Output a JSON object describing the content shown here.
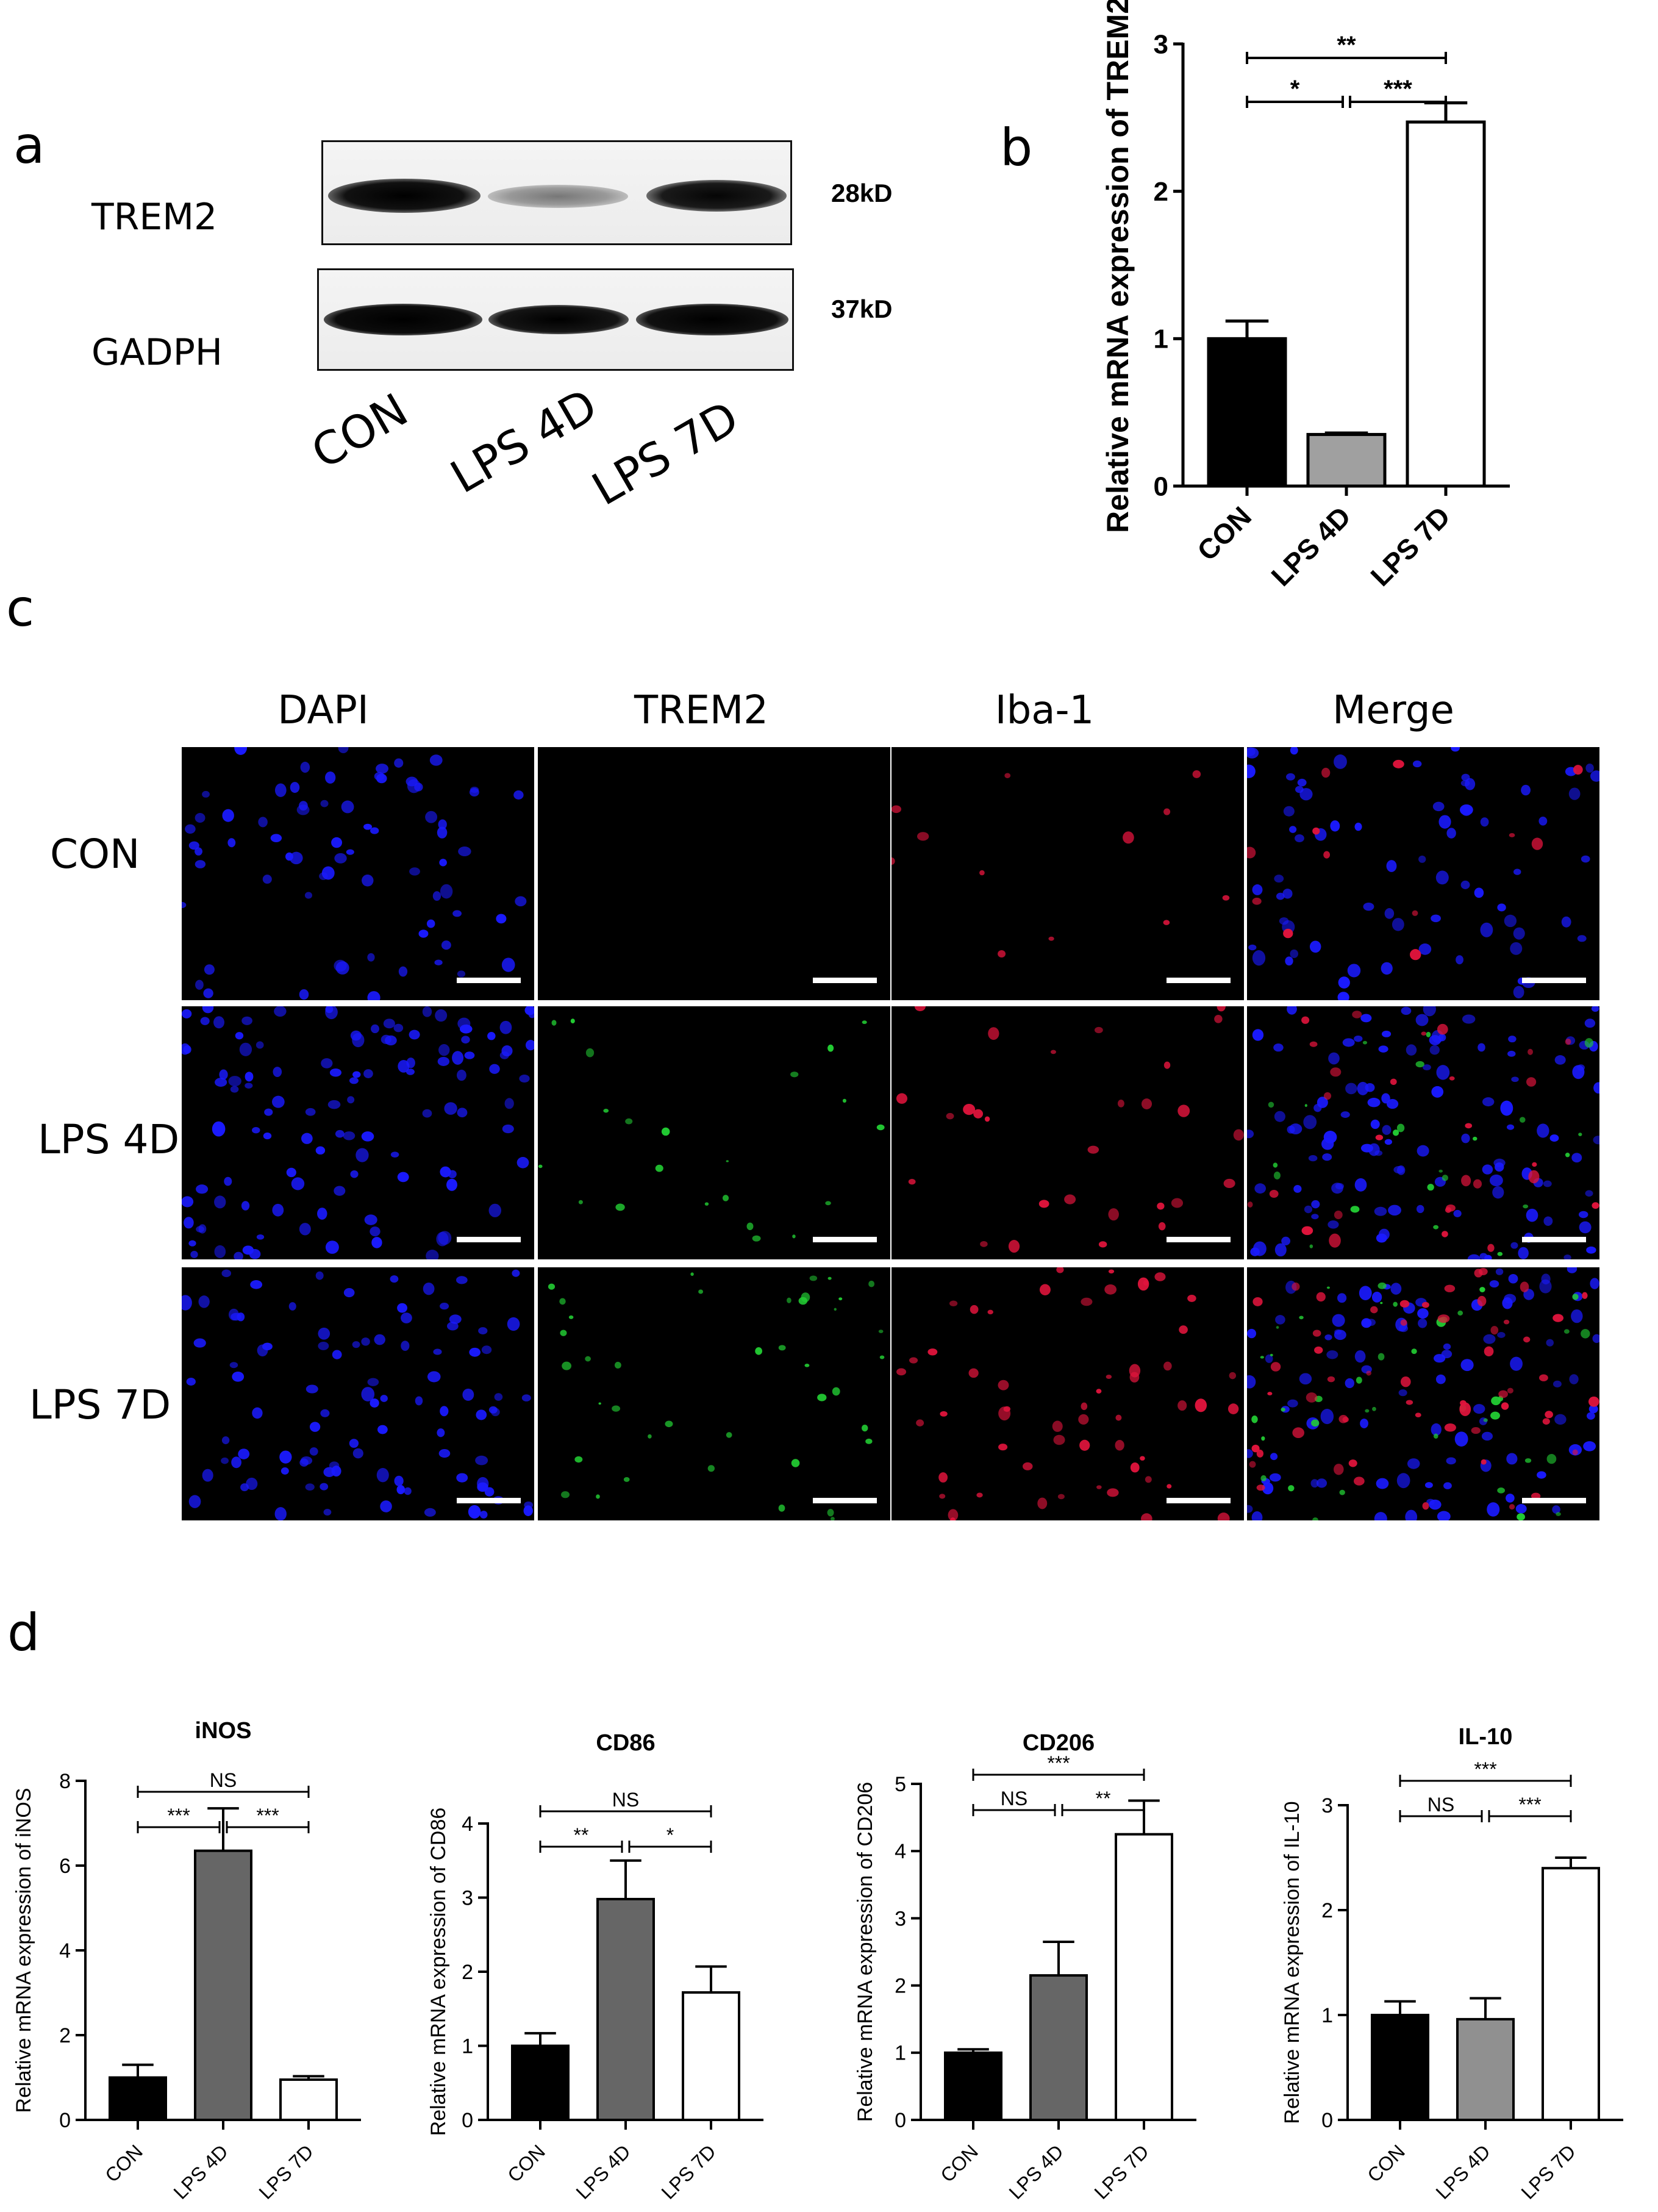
{
  "panel_labels": {
    "a": "a",
    "b": "b",
    "c": "c",
    "d": "d"
  },
  "western_blot": {
    "rows": [
      {
        "protein": "TREM2",
        "size": "28kD"
      },
      {
        "protein": "GADPH",
        "size": "37kD"
      }
    ],
    "lanes": [
      "CON",
      "LPS 4D",
      "LPS 7D"
    ],
    "band_intensity": {
      "TREM2": [
        1.0,
        0.3,
        0.85
      ],
      "GADPH": [
        1.0,
        0.95,
        0.95
      ]
    }
  },
  "microscopy": {
    "channels": [
      "DAPI",
      "TREM2",
      "Iba-1",
      "Merge"
    ],
    "rows": [
      "CON",
      "LPS 4D",
      "LPS 7D"
    ],
    "colors": {
      "DAPI": "#1a1aff",
      "TREM2": "#22cc33",
      "Iba-1": "#e0143c"
    }
  },
  "chart_data": [
    {
      "id": "b",
      "type": "bar",
      "title": "",
      "ylabel": "Relative mRNA expression of TREM2",
      "categories": [
        "CON",
        "LPS  4D",
        "LPS  7D"
      ],
      "values": [
        1.0,
        0.35,
        2.47
      ],
      "errors": [
        0.12,
        0.01,
        0.13
      ],
      "bar_colors": [
        "#000000",
        "#a0a0a0",
        "#ffffff"
      ],
      "ylim": [
        0,
        3
      ],
      "yticks": [
        0,
        1,
        2,
        3
      ],
      "significance": [
        {
          "from": 0,
          "to": 2,
          "label": "**",
          "level": 2
        },
        {
          "from": 0,
          "to": 1,
          "label": "*",
          "level": 1
        },
        {
          "from": 1,
          "to": 2,
          "label": "***",
          "level": 1
        }
      ]
    },
    {
      "id": "d1",
      "type": "bar",
      "title": "iNOS",
      "ylabel": "Relative mRNA expression of iNOS",
      "categories": [
        "CON",
        "LPS 4D",
        "LPS 7D"
      ],
      "values": [
        1.0,
        6.35,
        0.95
      ],
      "errors": [
        0.3,
        1.0,
        0.08
      ],
      "bar_colors": [
        "#000000",
        "#666666",
        "#ffffff"
      ],
      "ylim": [
        0,
        8
      ],
      "yticks": [
        0,
        2,
        4,
        6,
        8
      ],
      "significance": [
        {
          "from": 0,
          "to": 2,
          "label": "NS",
          "level": 2
        },
        {
          "from": 0,
          "to": 1,
          "label": "***",
          "level": 1
        },
        {
          "from": 1,
          "to": 2,
          "label": "***",
          "level": 1
        }
      ]
    },
    {
      "id": "d2",
      "type": "bar",
      "title": "CD86",
      "ylabel": "Relative mRNA expression of CD86",
      "categories": [
        "CON",
        "LPS 4D",
        "LPS 7D"
      ],
      "values": [
        1.0,
        2.98,
        1.72
      ],
      "errors": [
        0.17,
        0.52,
        0.35
      ],
      "bar_colors": [
        "#000000",
        "#666666",
        "#ffffff"
      ],
      "ylim": [
        0,
        4
      ],
      "yticks": [
        0,
        1,
        2,
        3,
        4
      ],
      "significance": [
        {
          "from": 0,
          "to": 2,
          "label": "NS",
          "level": 2
        },
        {
          "from": 0,
          "to": 1,
          "label": "**",
          "level": 1
        },
        {
          "from": 1,
          "to": 2,
          "label": "*",
          "level": 1
        }
      ]
    },
    {
      "id": "d3",
      "type": "bar",
      "title": "CD206",
      "ylabel": "Relative mRNA expression of CD206",
      "categories": [
        "CON",
        "LPS 4D",
        "LPS 7D"
      ],
      "values": [
        1.0,
        2.15,
        4.25
      ],
      "errors": [
        0.05,
        0.5,
        0.5
      ],
      "bar_colors": [
        "#000000",
        "#666666",
        "#ffffff"
      ],
      "ylim": [
        0,
        5
      ],
      "yticks": [
        0,
        1,
        2,
        3,
        4,
        5
      ],
      "significance": [
        {
          "from": 0,
          "to": 2,
          "label": "***",
          "level": 2
        },
        {
          "from": 0,
          "to": 1,
          "label": "NS",
          "level": 1
        },
        {
          "from": 1,
          "to": 2,
          "label": "**",
          "level": 1
        }
      ]
    },
    {
      "id": "d4",
      "type": "bar",
      "title": "IL-10",
      "ylabel": "Relative mRNA expression of  IL-10",
      "categories": [
        "CON",
        "LPS 4D",
        "LPS 7D"
      ],
      "values": [
        1.0,
        0.96,
        2.4
      ],
      "errors": [
        0.13,
        0.2,
        0.1
      ],
      "bar_colors": [
        "#000000",
        "#909090",
        "#ffffff"
      ],
      "ylim": [
        0,
        3
      ],
      "yticks": [
        0,
        1,
        2,
        3
      ],
      "significance": [
        {
          "from": 0,
          "to": 2,
          "label": "***",
          "level": 2
        },
        {
          "from": 0,
          "to": 1,
          "label": "NS",
          "level": 1
        },
        {
          "from": 1,
          "to": 2,
          "label": "***",
          "level": 1
        }
      ]
    }
  ]
}
